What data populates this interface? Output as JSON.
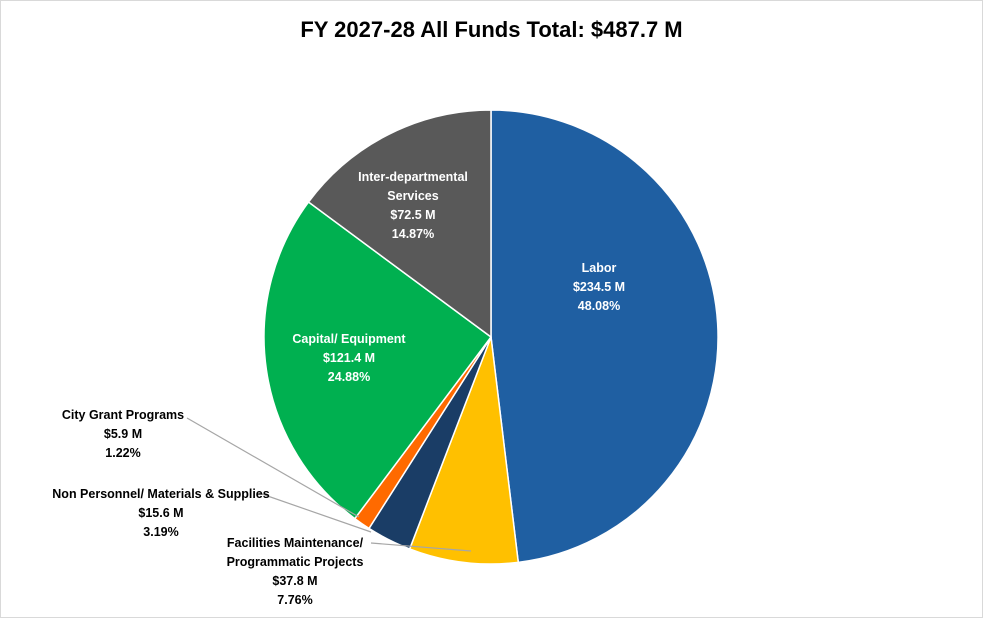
{
  "chart_data": {
    "type": "pie",
    "title": "FY 2027-28 All Funds Total: $487.7 M",
    "slices": [
      {
        "id": "labor",
        "label_lines": [
          "Labor"
        ],
        "value_text": "$234.5 M",
        "percent_text": "48.08%",
        "value": 234.5,
        "percent": 48.08,
        "color": "#1f5fa2",
        "label_color": "#ffffff"
      },
      {
        "id": "facilities",
        "label_lines": [
          "Facilities Maintenance/",
          "Programmatic Projects"
        ],
        "value_text": "$37.8 M",
        "percent_text": "7.76%",
        "value": 37.8,
        "percent": 7.76,
        "color": "#ffc000",
        "label_color": "#000000"
      },
      {
        "id": "non-personnel",
        "label_lines": [
          "Non Personnel/ Materials & Supplies"
        ],
        "value_text": "$15.6 M",
        "percent_text": "3.19%",
        "value": 15.6,
        "percent": 3.19,
        "color": "#1a3d66",
        "label_color": "#000000"
      },
      {
        "id": "city-grant",
        "label_lines": [
          "City Grant Programs"
        ],
        "value_text": "$5.9 M",
        "percent_text": "1.22%",
        "value": 5.9,
        "percent": 1.22,
        "color": "#ff6a00",
        "label_color": "#000000"
      },
      {
        "id": "capital",
        "label_lines": [
          "Capital/ Equipment"
        ],
        "value_text": "$121.4 M",
        "percent_text": "24.88%",
        "value": 121.4,
        "percent": 24.88,
        "color": "#00b050",
        "label_color": "#ffffff"
      },
      {
        "id": "inter-departmental",
        "label_lines": [
          "Inter-departmental",
          "Services"
        ],
        "value_text": "$72.5 M",
        "percent_text": "14.87%",
        "value": 72.5,
        "percent": 14.87,
        "color": "#595959",
        "label_color": "#ffffff"
      }
    ]
  }
}
